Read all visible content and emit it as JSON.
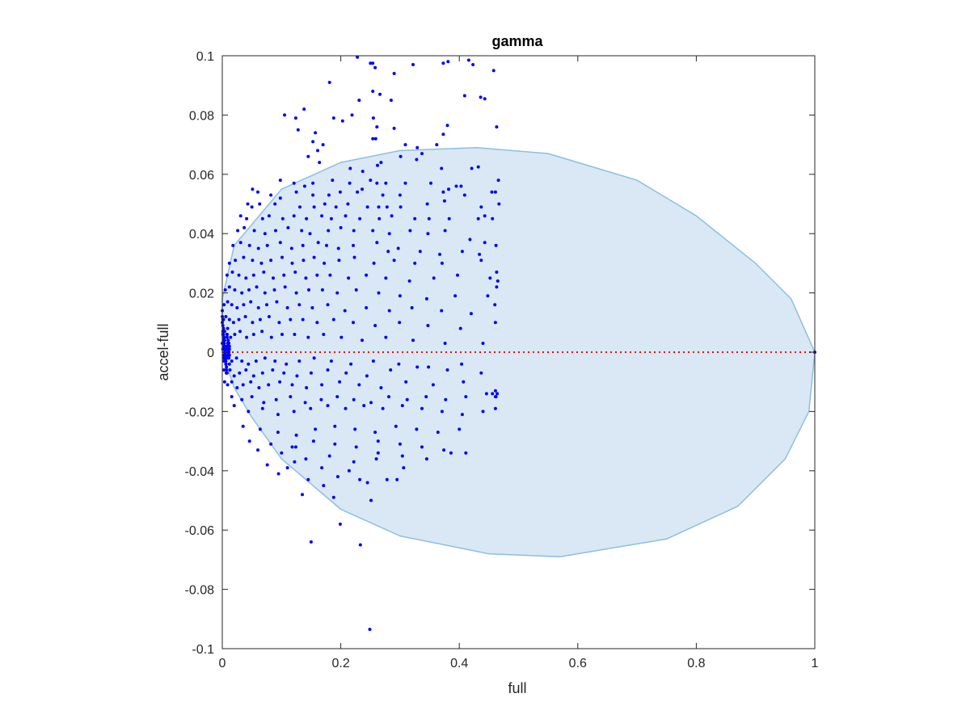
{
  "chart_data": {
    "type": "scatter",
    "title": "gamma",
    "xlabel": "full",
    "ylabel": "accel-full",
    "xlim": [
      0,
      1
    ],
    "ylim": [
      -0.1,
      0.1
    ],
    "xticks": [
      0,
      0.2,
      0.4,
      0.6,
      0.8,
      1
    ],
    "xtick_labels": [
      "0",
      "0.2",
      "0.4",
      "0.6",
      "0.8",
      "1"
    ],
    "yticks": [
      -0.1,
      -0.08,
      -0.06,
      -0.04,
      -0.02,
      0,
      0.02,
      0.04,
      0.06,
      0.08,
      0.1
    ],
    "ytick_labels": [
      "-0.1",
      "-0.08",
      "-0.06",
      "-0.04",
      "-0.02",
      "0",
      "0.02",
      "0.04",
      "0.06",
      "0.08",
      "0.1"
    ],
    "grid": false,
    "colors": {
      "points": "#0000ff",
      "region_fill": "#d9e8f4",
      "region_edge": "#8cbfe0",
      "reference_line": "#ff0000",
      "axes": "#262626"
    },
    "reference_line": {
      "y": 0,
      "x_range": [
        0,
        1
      ],
      "style": "dotted"
    },
    "region": {
      "shape": "ellipse-like",
      "description_points": [
        [
          0,
          0.018
        ],
        [
          0.02,
          0.036
        ],
        [
          0.1,
          0.055
        ],
        [
          0.2,
          0.064
        ],
        [
          0.3,
          0.068
        ],
        [
          0.43,
          0.069
        ],
        [
          0.55,
          0.067
        ],
        [
          0.7,
          0.058
        ],
        [
          0.8,
          0.046
        ],
        [
          0.9,
          0.03
        ],
        [
          0.96,
          0.018
        ],
        [
          1.0,
          0
        ],
        [
          0.99,
          -0.02
        ],
        [
          0.95,
          -0.036
        ],
        [
          0.87,
          -0.052
        ],
        [
          0.75,
          -0.063
        ],
        [
          0.57,
          -0.069
        ],
        [
          0.45,
          -0.068
        ],
        [
          0.3,
          -0.062
        ],
        [
          0.2,
          -0.053
        ],
        [
          0.1,
          -0.036
        ],
        [
          0.05,
          -0.022
        ],
        [
          0.02,
          -0.012
        ],
        [
          0,
          0
        ]
      ]
    },
    "series": [
      {
        "x": [
          0.228,
          0.254,
          0.258,
          0.25,
          0.29,
          0.322,
          0.373,
          0.381,
          0.416,
          0.423,
          0.458,
          0.181,
          0.254,
          0.285,
          0.231,
          0.266,
          0.409,
          0.436,
          0.443,
          0.105,
          0.138,
          0.124,
          0.188,
          0.203,
          0.219,
          0.255,
          0.261,
          0.29,
          0.373,
          0.38,
          0.463,
          0.128,
          0.157,
          0.153,
          0.161,
          0.17,
          0.254,
          0.259,
          0.309,
          0.329,
          0.362,
          0.145,
          0.164,
          0.216,
          0.237,
          0.262,
          0.268,
          0.301,
          0.328,
          0.337,
          0.37,
          0.432,
          0.421,
          0.098,
          0.121,
          0.139,
          0.153,
          0.186,
          0.215,
          0.25,
          0.261,
          0.276,
          0.309,
          0.352,
          0.395,
          0.403,
          0.466,
          0.051,
          0.06,
          0.082,
          0.098,
          0.125,
          0.153,
          0.18,
          0.199,
          0.228,
          0.236,
          0.271,
          0.3,
          0.373,
          0.382,
          0.409,
          0.455,
          0.461,
          0.043,
          0.05,
          0.063,
          0.089,
          0.131,
          0.155,
          0.173,
          0.192,
          0.212,
          0.245,
          0.264,
          0.278,
          0.301,
          0.346,
          0.375,
          0.437,
          0.467,
          0.031,
          0.041,
          0.068,
          0.079,
          0.102,
          0.121,
          0.142,
          0.168,
          0.184,
          0.208,
          0.232,
          0.265,
          0.286,
          0.325,
          0.349,
          0.383,
          0.432,
          0.443,
          0.456,
          0.026,
          0.037,
          0.054,
          0.072,
          0.09,
          0.111,
          0.134,
          0.148,
          0.179,
          0.2,
          0.222,
          0.254,
          0.282,
          0.317,
          0.347,
          0.376,
          0.418,
          0.443,
          0.018,
          0.031,
          0.046,
          0.061,
          0.076,
          0.098,
          0.117,
          0.136,
          0.162,
          0.176,
          0.196,
          0.221,
          0.261,
          0.28,
          0.297,
          0.334,
          0.367,
          0.405,
          0.434,
          0.462,
          0.012,
          0.022,
          0.036,
          0.051,
          0.066,
          0.082,
          0.101,
          0.118,
          0.137,
          0.155,
          0.172,
          0.197,
          0.223,
          0.256,
          0.29,
          0.325,
          0.371,
          0.437,
          0.463,
          0.008,
          0.017,
          0.028,
          0.04,
          0.053,
          0.07,
          0.086,
          0.104,
          0.123,
          0.141,
          0.16,
          0.182,
          0.213,
          0.243,
          0.276,
          0.316,
          0.357,
          0.397,
          0.452,
          0.465,
          0.005,
          0.012,
          0.021,
          0.033,
          0.045,
          0.058,
          0.072,
          0.088,
          0.106,
          0.125,
          0.146,
          0.169,
          0.194,
          0.226,
          0.264,
          0.3,
          0.345,
          0.393,
          0.448,
          0.463,
          0.003,
          0.009,
          0.016,
          0.025,
          0.036,
          0.048,
          0.061,
          0.075,
          0.092,
          0.11,
          0.13,
          0.152,
          0.178,
          0.207,
          0.243,
          0.282,
          0.32,
          0.37,
          0.42,
          0.46,
          0.002,
          0.006,
          0.012,
          0.019,
          0.028,
          0.039,
          0.051,
          0.064,
          0.079,
          0.096,
          0.115,
          0.136,
          0.16,
          0.188,
          0.221,
          0.258,
          0.299,
          0.347,
          0.402,
          0.461,
          0.001,
          0.004,
          0.008,
          0.014,
          0.021,
          0.03,
          0.041,
          0.053,
          0.067,
          0.083,
          0.101,
          0.122,
          0.145,
          0.171,
          0.201,
          0.236,
          0.276,
          0.322,
          0.376,
          0.44,
          0.002,
          0.005,
          0.01,
          0.016,
          0.024,
          0.033,
          0.044,
          0.057,
          0.072,
          0.089,
          0.108,
          0.13,
          0.155,
          0.184,
          0.217,
          0.255,
          0.298,
          0.348,
          0.404,
          0.464,
          0.003,
          0.007,
          0.013,
          0.02,
          0.029,
          0.04,
          0.053,
          0.068,
          0.085,
          0.104,
          0.126,
          0.15,
          0.178,
          0.209,
          0.244,
          0.284,
          0.329,
          0.38,
          0.437,
          0.461,
          0.004,
          0.009,
          0.016,
          0.025,
          0.035,
          0.048,
          0.062,
          0.078,
          0.097,
          0.118,
          0.142,
          0.168,
          0.198,
          0.231,
          0.268,
          0.31,
          0.356,
          0.407,
          0.456,
          0.462,
          0.016,
          0.033,
          0.05,
          0.07,
          0.091,
          0.115,
          0.14,
          0.167,
          0.194,
          0.222,
          0.251,
          0.281,
          0.312,
          0.344,
          0.377,
          0.411,
          0.446,
          0.461,
          0.02,
          0.044,
          0.068,
          0.094,
          0.121,
          0.149,
          0.178,
          0.208,
          0.239,
          0.271,
          0.304,
          0.337,
          0.371,
          0.405,
          0.44,
          0.461,
          0.035,
          0.064,
          0.094,
          0.125,
          0.157,
          0.19,
          0.224,
          0.258,
          0.293,
          0.328,
          0.364,
          0.4,
          0.046,
          0.082,
          0.118,
          0.154,
          0.19,
          0.226,
          0.263,
          0.3,
          0.337,
          0.374,
          0.411,
          0.06,
          0.1,
          0.141,
          0.181,
          0.222,
          0.263,
          0.304,
          0.345,
          0.386,
          0.076,
          0.122,
          0.168,
          0.214,
          0.26,
          0.306,
          0.095,
          0.145,
          0.195,
          0.245,
          0.295,
          0.11,
          0.171,
          0.232,
          0.278,
          0.124,
          0.188,
          0.251,
          0.135,
          0.199,
          0.15,
          0.233,
          0.249,
          0.0,
          0.001,
          0.002,
          0.003,
          0.004,
          0.005,
          0.006,
          0.007,
          0.008,
          0.009,
          0.01,
          0.011,
          0.012,
          0.0,
          0.001,
          0.002,
          0.003,
          0.004,
          0.005,
          0.006,
          0.007,
          0.008,
          0.009,
          0.01,
          0.011,
          0.012,
          0.0,
          0.001,
          0.002,
          0.003,
          0.004,
          0.005,
          0.006,
          0.007,
          0.008,
          0.009,
          0.01,
          0.011,
          0.012,
          0.0,
          0.001,
          0.002,
          0.003,
          0.004,
          0.005,
          0.006,
          0.007,
          0.008,
          0.009,
          0.01,
          0.011,
          0.012,
          1.0
        ],
        "y": [
          0.0995,
          0.0975,
          0.096,
          0.0975,
          0.094,
          0.097,
          0.0975,
          0.098,
          0.0985,
          0.097,
          0.095,
          0.091,
          0.088,
          0.085,
          0.085,
          0.087,
          0.0865,
          0.086,
          0.0855,
          0.08,
          0.082,
          0.079,
          0.079,
          0.078,
          0.08,
          0.079,
          0.076,
          0.0755,
          0.0735,
          0.0765,
          0.076,
          0.075,
          0.074,
          0.071,
          0.068,
          0.07,
          0.072,
          0.072,
          0.07,
          0.069,
          0.07,
          0.066,
          0.064,
          0.062,
          0.061,
          0.063,
          0.064,
          0.066,
          0.065,
          0.067,
          0.062,
          0.0625,
          0.062,
          0.058,
          0.057,
          0.056,
          0.057,
          0.058,
          0.057,
          0.058,
          0.057,
          0.057,
          0.057,
          0.057,
          0.056,
          0.056,
          0.058,
          0.055,
          0.054,
          0.053,
          0.052,
          0.054,
          0.053,
          0.053,
          0.054,
          0.054,
          0.055,
          0.053,
          0.053,
          0.054,
          0.055,
          0.053,
          0.054,
          0.054,
          0.05,
          0.049,
          0.05,
          0.05,
          0.049,
          0.049,
          0.05,
          0.049,
          0.05,
          0.049,
          0.049,
          0.049,
          0.049,
          0.05,
          0.051,
          0.049,
          0.05,
          0.046,
          0.045,
          0.045,
          0.046,
          0.045,
          0.046,
          0.045,
          0.046,
          0.045,
          0.046,
          0.045,
          0.045,
          0.046,
          0.045,
          0.045,
          0.045,
          0.045,
          0.046,
          0.045,
          0.041,
          0.042,
          0.041,
          0.04,
          0.041,
          0.042,
          0.041,
          0.04,
          0.041,
          0.042,
          0.041,
          0.041,
          0.04,
          0.041,
          0.04,
          0.041,
          0.038,
          0.037,
          0.036,
          0.037,
          0.036,
          0.035,
          0.036,
          0.037,
          0.035,
          0.036,
          0.037,
          0.036,
          0.035,
          0.036,
          0.037,
          0.034,
          0.035,
          0.034,
          0.033,
          0.034,
          0.033,
          0.036,
          0.03,
          0.031,
          0.032,
          0.031,
          0.03,
          0.031,
          0.032,
          0.03,
          0.031,
          0.032,
          0.03,
          0.031,
          0.032,
          0.03,
          0.031,
          0.03,
          0.03,
          0.031,
          0.027,
          0.026,
          0.027,
          0.026,
          0.025,
          0.026,
          0.027,
          0.025,
          0.026,
          0.027,
          0.025,
          0.026,
          0.026,
          0.025,
          0.026,
          0.025,
          0.024,
          0.025,
          0.026,
          0.025,
          0.024,
          0.021,
          0.022,
          0.021,
          0.02,
          0.021,
          0.022,
          0.02,
          0.021,
          0.022,
          0.02,
          0.021,
          0.021,
          0.02,
          0.021,
          0.02,
          0.019,
          0.018,
          0.019,
          0.019,
          0.022,
          0.016,
          0.017,
          0.016,
          0.015,
          0.016,
          0.017,
          0.015,
          0.016,
          0.017,
          0.015,
          0.016,
          0.015,
          0.016,
          0.014,
          0.015,
          0.014,
          0.015,
          0.014,
          0.013,
          0.016,
          0.011,
          0.012,
          0.011,
          0.01,
          0.011,
          0.012,
          0.01,
          0.011,
          0.012,
          0.01,
          0.011,
          0.011,
          0.01,
          0.011,
          0.01,
          0.009,
          0.01,
          0.009,
          0.008,
          0.01,
          0.006,
          0.007,
          0.006,
          0.005,
          0.006,
          0.007,
          0.005,
          0.006,
          0.007,
          0.005,
          0.006,
          0.006,
          0.005,
          0.006,
          0.005,
          0.004,
          0.005,
          0.004,
          0.003,
          0.003,
          -0.002,
          -0.003,
          -0.002,
          -0.003,
          -0.002,
          -0.003,
          -0.004,
          -0.003,
          -0.002,
          -0.003,
          -0.004,
          -0.003,
          -0.002,
          -0.003,
          -0.004,
          -0.003,
          -0.004,
          -0.005,
          -0.004,
          -0.014,
          -0.006,
          -0.007,
          -0.006,
          -0.008,
          -0.007,
          -0.006,
          -0.008,
          -0.007,
          -0.006,
          -0.007,
          -0.008,
          -0.007,
          -0.006,
          -0.007,
          -0.008,
          -0.006,
          -0.005,
          -0.006,
          -0.007,
          -0.013,
          -0.01,
          -0.011,
          -0.01,
          -0.012,
          -0.011,
          -0.01,
          -0.012,
          -0.011,
          -0.01,
          -0.011,
          -0.012,
          -0.011,
          -0.01,
          -0.011,
          -0.012,
          -0.01,
          -0.011,
          -0.01,
          -0.014,
          -0.015,
          -0.015,
          -0.016,
          -0.015,
          -0.017,
          -0.016,
          -0.015,
          -0.017,
          -0.016,
          -0.015,
          -0.016,
          -0.017,
          -0.015,
          -0.016,
          -0.015,
          -0.016,
          -0.015,
          -0.014,
          -0.015,
          -0.018,
          -0.02,
          -0.019,
          -0.021,
          -0.02,
          -0.019,
          -0.018,
          -0.019,
          -0.018,
          -0.019,
          -0.018,
          -0.019,
          -0.02,
          -0.021,
          -0.02,
          -0.019,
          -0.025,
          -0.026,
          -0.027,
          -0.028,
          -0.026,
          -0.025,
          -0.026,
          -0.027,
          -0.025,
          -0.026,
          -0.027,
          -0.026,
          -0.03,
          -0.031,
          -0.032,
          -0.03,
          -0.031,
          -0.032,
          -0.03,
          -0.031,
          -0.032,
          -0.033,
          -0.034,
          -0.033,
          -0.034,
          -0.036,
          -0.035,
          -0.037,
          -0.034,
          -0.035,
          -0.036,
          -0.034,
          -0.038,
          -0.037,
          -0.039,
          -0.04,
          -0.036,
          -0.039,
          -0.041,
          -0.043,
          -0.042,
          -0.044,
          -0.043,
          -0.039,
          -0.045,
          -0.043,
          -0.043,
          -0.032,
          -0.049,
          -0.05,
          -0.048,
          -0.058,
          -0.064,
          -0.065,
          -0.0935,
          0.012,
          0.009,
          0.006,
          0.003,
          0.001,
          -0.001,
          -0.003,
          -0.005,
          -0.007,
          0.008,
          0.004,
          0.0,
          -0.004,
          0.01,
          0.007,
          0.004,
          0.002,
          0.0,
          -0.002,
          -0.004,
          -0.006,
          0.005,
          0.002,
          -0.001,
          0.003,
          0.001,
          0.014,
          0.011,
          0.008,
          0.005,
          0.002,
          -0.001,
          -0.004,
          -0.007,
          0.006,
          0.003,
          0.0,
          -0.002,
          0.002,
          0.003,
          0.001,
          -0.001,
          -0.003,
          0.004,
          0.002,
          0.0,
          -0.002,
          0.001,
          -0.001,
          0.002,
          0.0,
          -0.001,
          0.0
        ]
      }
    ]
  }
}
